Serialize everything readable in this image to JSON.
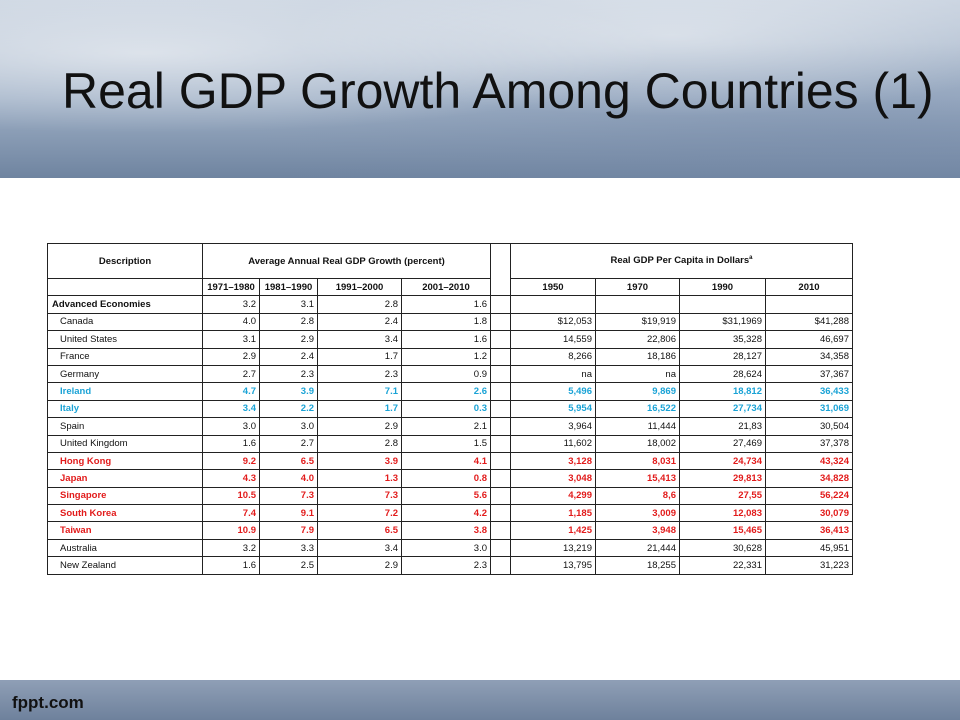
{
  "slide": {
    "title": "Real GDP Growth Among Countries (1)",
    "brand": "fppt.com"
  },
  "table": {
    "header": {
      "description": "Description",
      "growth_group": "Average Annual Real GDP Growth (percent)",
      "percapita_group": "Real GDP Per Capita in Dollars",
      "percapita_mark": "a"
    },
    "subheaders": [
      "1971–1980",
      "1981–1990",
      "1991–2000",
      "2001–2010",
      "1950",
      "1970",
      "1990",
      "2010"
    ],
    "rows": [
      {
        "name": "Advanced Economies",
        "style": "top",
        "growth": [
          "3.2",
          "3.1",
          "2.8",
          "1.6"
        ],
        "percapita": [
          "",
          "",
          "",
          ""
        ]
      },
      {
        "name": "Canada",
        "style": "normal",
        "growth": [
          "4.0",
          "2.8",
          "2.4",
          "1.8"
        ],
        "percapita": [
          "$12,053",
          "$19,919",
          "$31,1969",
          "$41,288"
        ]
      },
      {
        "name": "United States",
        "style": "normal",
        "growth": [
          "3.1",
          "2.9",
          "3.4",
          "1.6"
        ],
        "percapita": [
          "14,559",
          "22,806",
          "35,328",
          "46,697"
        ]
      },
      {
        "name": "France",
        "style": "normal",
        "growth": [
          "2.9",
          "2.4",
          "1.7",
          "1.2"
        ],
        "percapita": [
          "8,266",
          "18,186",
          "28,127",
          "34,358"
        ]
      },
      {
        "name": "Germany",
        "style": "normal",
        "growth": [
          "2.7",
          "2.3",
          "2.3",
          "0.9"
        ],
        "percapita": [
          "na",
          "na",
          "28,624",
          "37,367"
        ]
      },
      {
        "name": "Ireland",
        "style": "blue",
        "growth": [
          "4.7",
          "3.9",
          "7.1",
          "2.6"
        ],
        "percapita": [
          "5,496",
          "9,869",
          "18,812",
          "36,433"
        ]
      },
      {
        "name": "Italy",
        "style": "blue",
        "growth": [
          "3.4",
          "2.2",
          "1.7",
          "0.3"
        ],
        "percapita": [
          "5,954",
          "16,522",
          "27,734",
          "31,069"
        ]
      },
      {
        "name": "Spain",
        "style": "normal",
        "growth": [
          "3.0",
          "3.0",
          "2.9",
          "2.1"
        ],
        "percapita": [
          "3,964",
          "11,444",
          "21,83",
          "30,504"
        ]
      },
      {
        "name": "United Kingdom",
        "style": "normal",
        "growth": [
          "1.6",
          "2.7",
          "2.8",
          "1.5"
        ],
        "percapita": [
          "11,602",
          "18,002",
          "27,469",
          "37,378"
        ]
      },
      {
        "name": "Hong Kong",
        "style": "red",
        "growth": [
          "9.2",
          "6.5",
          "3.9",
          "4.1"
        ],
        "percapita": [
          "3,128",
          "8,031",
          "24,734",
          "43,324"
        ]
      },
      {
        "name": "Japan",
        "style": "red",
        "growth": [
          "4.3",
          "4.0",
          "1.3",
          "0.8"
        ],
        "percapita": [
          "3,048",
          "15,413",
          "29,813",
          "34,828"
        ]
      },
      {
        "name": "Singapore",
        "style": "red",
        "growth": [
          "10.5",
          "7.3",
          "7.3",
          "5.6"
        ],
        "percapita": [
          "4,299",
          "8,6",
          "27,55",
          "56,224"
        ]
      },
      {
        "name": "South Korea",
        "style": "red",
        "growth": [
          "7.4",
          "9.1",
          "7.2",
          "4.2"
        ],
        "percapita": [
          "1,185",
          "3,009",
          "12,083",
          "30,079"
        ]
      },
      {
        "name": "Taiwan",
        "style": "red",
        "growth": [
          "10.9",
          "7.9",
          "6.5",
          "3.8"
        ],
        "percapita": [
          "1,425",
          "3,948",
          "15,465",
          "36,413"
        ]
      },
      {
        "name": "Australia",
        "style": "normal",
        "growth": [
          "3.2",
          "3.3",
          "3.4",
          "3.0"
        ],
        "percapita": [
          "13,219",
          "21,444",
          "30,628",
          "45,951"
        ]
      },
      {
        "name": "New Zealand",
        "style": "normal",
        "growth": [
          "1.6",
          "2.5",
          "2.9",
          "2.3"
        ],
        "percapita": [
          "13,795",
          "18,255",
          "22,331",
          "31,223"
        ]
      }
    ]
  },
  "colors": {
    "highlight_blue": "#1aa3d6",
    "highlight_red": "#e21b1b"
  }
}
